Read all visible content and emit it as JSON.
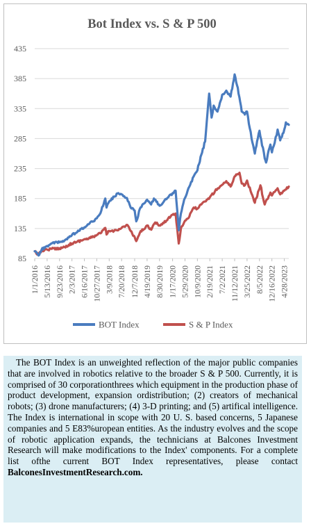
{
  "chart_data": {
    "type": "line",
    "title": "Bot Index vs. S & P 500",
    "xlabel": "",
    "ylabel": "",
    "ylim": [
      85,
      435
    ],
    "yticks": [
      85,
      135,
      185,
      235,
      285,
      335,
      385,
      435
    ],
    "grid": true,
    "legend_position": "bottom",
    "xlim": [
      "2016-01-01",
      "2023-06-15"
    ],
    "xticks": [
      "1/1/2016",
      "5/13/2016",
      "9/23/2016",
      "2/3/2017",
      "6/16/2017",
      "10/27/2017",
      "3/9/2018",
      "7/20/2018",
      "12/7/2018",
      "4/19/2019",
      "8/30/2019",
      "1/17/2020",
      "5/29/2020",
      "10/9/2020",
      "2/19/2021",
      "7/2/2021",
      "11/12/2021",
      "3/25/2022",
      "8/5/2022",
      "12/16/2022",
      "4/28/2023"
    ],
    "series": [
      {
        "name": "BOT Index",
        "color": "#4a7cbf",
        "points": [
          [
            "2016-01-01",
            97
          ],
          [
            "2016-02-12",
            90
          ],
          [
            "2016-03-15",
            100
          ],
          [
            "2016-05-13",
            106
          ],
          [
            "2016-07-01",
            110
          ],
          [
            "2016-09-23",
            112
          ],
          [
            "2016-11-15",
            115
          ],
          [
            "2017-01-01",
            120
          ],
          [
            "2017-02-03",
            124
          ],
          [
            "2017-04-01",
            129
          ],
          [
            "2017-06-16",
            137
          ],
          [
            "2017-08-01",
            142
          ],
          [
            "2017-10-27",
            152
          ],
          [
            "2017-12-15",
            165
          ],
          [
            "2018-01-26",
            185
          ],
          [
            "2018-02-09",
            170
          ],
          [
            "2018-03-09",
            180
          ],
          [
            "2018-05-01",
            188
          ],
          [
            "2018-06-15",
            194
          ],
          [
            "2018-07-20",
            192
          ],
          [
            "2018-09-15",
            186
          ],
          [
            "2018-10-25",
            170
          ],
          [
            "2018-12-07",
            165
          ],
          [
            "2018-12-24",
            147
          ],
          [
            "2019-02-01",
            168
          ],
          [
            "2019-04-19",
            183
          ],
          [
            "2019-06-01",
            175
          ],
          [
            "2019-07-01",
            185
          ],
          [
            "2019-08-30",
            173
          ],
          [
            "2019-10-15",
            180
          ],
          [
            "2019-12-01",
            187
          ],
          [
            "2020-01-17",
            194
          ],
          [
            "2020-02-19",
            198
          ],
          [
            "2020-03-23",
            132
          ],
          [
            "2020-04-15",
            160
          ],
          [
            "2020-05-29",
            186
          ],
          [
            "2020-07-15",
            205
          ],
          [
            "2020-08-30",
            222
          ],
          [
            "2020-10-09",
            232
          ],
          [
            "2020-11-20",
            258
          ],
          [
            "2020-12-31",
            280
          ],
          [
            "2021-02-12",
            360
          ],
          [
            "2021-03-10",
            320
          ],
          [
            "2021-04-01",
            340
          ],
          [
            "2021-05-12",
            330
          ],
          [
            "2021-06-15",
            348
          ],
          [
            "2021-07-02",
            358
          ],
          [
            "2021-08-15",
            365
          ],
          [
            "2021-09-30",
            355
          ],
          [
            "2021-11-12",
            392
          ],
          [
            "2021-12-15",
            370
          ],
          [
            "2022-01-27",
            330
          ],
          [
            "2022-03-01",
            325
          ],
          [
            "2022-03-25",
            330
          ],
          [
            "2022-05-12",
            285
          ],
          [
            "2022-06-16",
            260
          ],
          [
            "2022-08-05",
            298
          ],
          [
            "2022-09-30",
            252
          ],
          [
            "2022-10-15",
            245
          ],
          [
            "2022-11-30",
            275
          ],
          [
            "2022-12-16",
            262
          ],
          [
            "2023-01-15",
            278
          ],
          [
            "2023-02-15",
            300
          ],
          [
            "2023-03-15",
            282
          ],
          [
            "2023-04-28",
            300
          ],
          [
            "2023-05-15",
            312
          ],
          [
            "2023-06-15",
            308
          ]
        ]
      },
      {
        "name": "S & P Index",
        "color": "#c0504d",
        "points": [
          [
            "2016-01-01",
            97
          ],
          [
            "2016-02-12",
            91
          ],
          [
            "2016-03-15",
            98
          ],
          [
            "2016-05-13",
            100
          ],
          [
            "2016-07-01",
            101
          ],
          [
            "2016-09-23",
            102
          ],
          [
            "2016-11-15",
            104
          ],
          [
            "2017-01-01",
            108
          ],
          [
            "2017-02-03",
            110
          ],
          [
            "2017-04-01",
            113
          ],
          [
            "2017-06-16",
            117
          ],
          [
            "2017-08-01",
            118
          ],
          [
            "2017-10-27",
            124
          ],
          [
            "2017-12-15",
            128
          ],
          [
            "2018-01-26",
            136
          ],
          [
            "2018-02-09",
            125
          ],
          [
            "2018-03-09",
            131
          ],
          [
            "2018-05-01",
            131
          ],
          [
            "2018-07-20",
            136
          ],
          [
            "2018-09-20",
            141
          ],
          [
            "2018-10-25",
            131
          ],
          [
            "2018-12-24",
            114
          ],
          [
            "2019-02-01",
            128
          ],
          [
            "2019-04-19",
            140
          ],
          [
            "2019-06-03",
            133
          ],
          [
            "2019-07-15",
            145
          ],
          [
            "2019-08-30",
            140
          ],
          [
            "2019-10-15",
            144
          ],
          [
            "2019-12-01",
            152
          ],
          [
            "2020-01-17",
            158
          ],
          [
            "2020-02-19",
            160
          ],
          [
            "2020-03-23",
            110
          ],
          [
            "2020-04-15",
            135
          ],
          [
            "2020-05-29",
            148
          ],
          [
            "2020-07-15",
            155
          ],
          [
            "2020-08-30",
            170
          ],
          [
            "2020-10-09",
            168
          ],
          [
            "2020-11-20",
            175
          ],
          [
            "2020-12-31",
            180
          ],
          [
            "2021-02-19",
            187
          ],
          [
            "2021-04-15",
            197
          ],
          [
            "2021-05-15",
            202
          ],
          [
            "2021-07-02",
            208
          ],
          [
            "2021-08-15",
            214
          ],
          [
            "2021-09-30",
            205
          ],
          [
            "2021-11-12",
            222
          ],
          [
            "2021-12-15",
            226
          ],
          [
            "2022-01-03",
            228
          ],
          [
            "2022-01-27",
            210
          ],
          [
            "2022-03-01",
            207
          ],
          [
            "2022-03-25",
            215
          ],
          [
            "2022-05-12",
            193
          ],
          [
            "2022-06-16",
            178
          ],
          [
            "2022-08-15",
            207
          ],
          [
            "2022-09-30",
            175
          ],
          [
            "2022-11-30",
            195
          ],
          [
            "2022-12-16",
            190
          ],
          [
            "2023-01-15",
            196
          ],
          [
            "2023-02-15",
            202
          ],
          [
            "2023-03-15",
            192
          ],
          [
            "2023-04-28",
            198
          ],
          [
            "2023-06-15",
            205
          ]
        ]
      }
    ]
  },
  "description": {
    "body": "The BOT Index is an unweighted reflection of the major public companies that are involved in robotics relative to the broader S & P 500. Currently, it is comprised of 30 corporationthrees which equipment in the production phase of product development, expansion ordistribution; (2) creators of mechanical robots; (3) drone manufacturers; (4) 3-D printing; and (5) artifical intelligence. The Index is international in scope with 20 U. S. based concerns, 5 Japanese companies and 5 E83%uropean entities. As the industry evolves and the scope of robotic application expands, the technicians at Balcones Investment Research will make modifications to the Index' components. For a complete list ofthe current BOT Index representatives, please contact",
    "link": "BalconesInvestmentResearch.com."
  }
}
